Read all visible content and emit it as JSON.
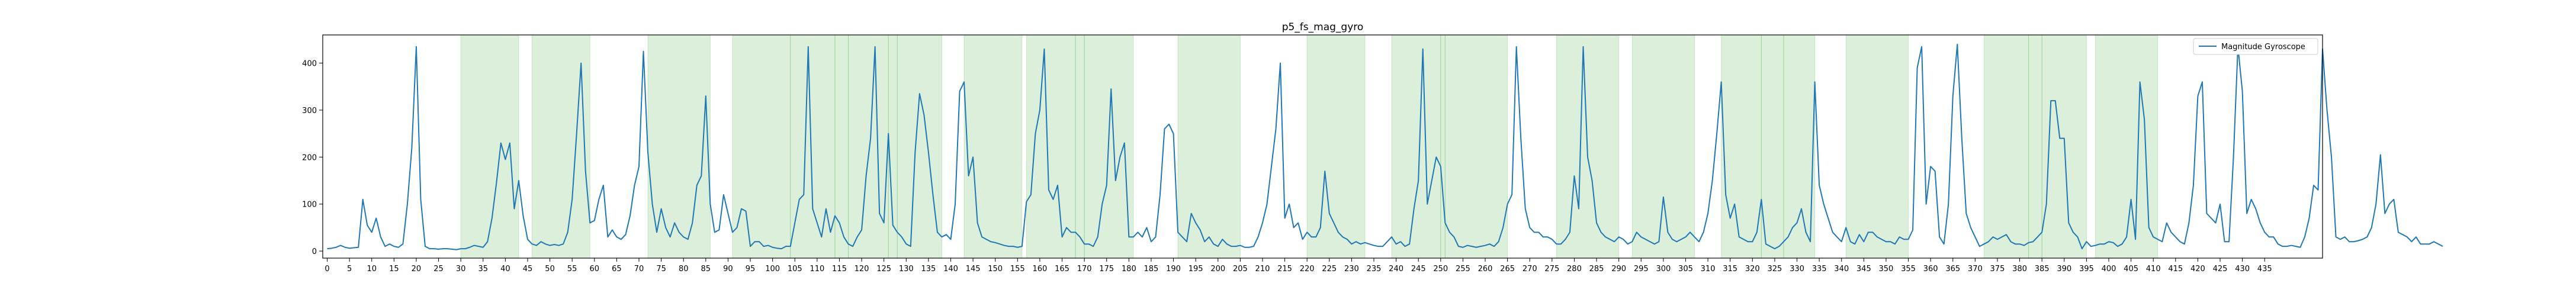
{
  "chart_data": {
    "type": "line",
    "title": "p5_fs_mag_gyro",
    "xlabel": "",
    "ylabel": "",
    "xlim": [
      -1,
      448
    ],
    "ylim": [
      -15,
      460
    ],
    "xticks": [
      0,
      5,
      10,
      15,
      20,
      25,
      30,
      35,
      40,
      45,
      50,
      55,
      60,
      65,
      70,
      75,
      80,
      85,
      90,
      95,
      100,
      105,
      110,
      115,
      120,
      125,
      130,
      135,
      140,
      145,
      150,
      155,
      160,
      165,
      170,
      175,
      180,
      185,
      190,
      195,
      200,
      205,
      210,
      215,
      220,
      225,
      230,
      235,
      240,
      245,
      250,
      255,
      260,
      265,
      270,
      275,
      280,
      285,
      290,
      295,
      300,
      305,
      310,
      315,
      320,
      325,
      330,
      335,
      340,
      345,
      350,
      355,
      360,
      365,
      370,
      375,
      380,
      385,
      390,
      395,
      400,
      405,
      410,
      415,
      420,
      425,
      430,
      435
    ],
    "yticks": [
      0,
      100,
      200,
      300,
      400
    ],
    "grid": false,
    "legend_position": "top-right",
    "series": [
      {
        "name": "Magnitude Gyroscope",
        "color": "#1f77b4",
        "x_start": 0,
        "values": [
          5,
          6,
          8,
          12,
          8,
          6,
          7,
          8,
          110,
          55,
          40,
          70,
          30,
          10,
          15,
          10,
          8,
          15,
          100,
          220,
          435,
          110,
          10,
          5,
          5,
          4,
          5,
          5,
          4,
          3,
          5,
          5,
          8,
          12,
          10,
          8,
          20,
          70,
          145,
          230,
          195,
          230,
          90,
          150,
          75,
          25,
          15,
          12,
          20,
          15,
          12,
          14,
          12,
          15,
          40,
          110,
          250,
          400,
          170,
          60,
          65,
          110,
          140,
          30,
          45,
          30,
          25,
          35,
          75,
          140,
          180,
          425,
          210,
          100,
          40,
          90,
          50,
          30,
          60,
          40,
          30,
          25,
          60,
          140,
          160,
          330,
          100,
          40,
          45,
          120,
          80,
          40,
          50,
          90,
          85,
          10,
          20,
          20,
          10,
          12,
          8,
          6,
          5,
          10,
          10,
          60,
          110,
          120,
          435,
          90,
          60,
          30,
          90,
          40,
          75,
          60,
          30,
          15,
          10,
          30,
          45,
          160,
          240,
          435,
          80,
          60,
          250,
          55,
          40,
          30,
          15,
          10,
          210,
          335,
          290,
          210,
          120,
          40,
          30,
          35,
          25,
          100,
          340,
          360,
          160,
          200,
          60,
          30,
          25,
          20,
          18,
          15,
          12,
          10,
          10,
          8,
          10,
          105,
          120,
          250,
          300,
          430,
          130,
          110,
          140,
          30,
          50,
          40,
          40,
          30,
          15,
          15,
          10,
          30,
          100,
          140,
          345,
          150,
          200,
          230,
          30,
          30,
          40,
          30,
          50,
          20,
          30,
          120,
          260,
          270,
          250,
          40,
          30,
          20,
          80,
          60,
          45,
          20,
          30,
          15,
          10,
          25,
          15,
          10,
          10,
          12,
          8,
          8,
          10,
          30,
          60,
          100,
          180,
          260,
          400,
          70,
          100,
          50,
          60,
          25,
          40,
          30,
          30,
          50,
          170,
          80,
          60,
          40,
          30,
          25,
          15,
          20,
          15,
          18,
          15,
          12,
          10,
          10,
          20,
          30,
          15,
          20,
          10,
          15,
          90,
          150,
          430,
          100,
          150,
          200,
          180,
          60,
          40,
          30,
          10,
          8,
          12,
          10,
          8,
          10,
          12,
          15,
          10,
          20,
          50,
          100,
          120,
          435,
          240,
          90,
          50,
          40,
          40,
          30,
          30,
          25,
          15,
          15,
          25,
          40,
          160,
          90,
          435,
          200,
          150,
          60,
          40,
          30,
          25,
          20,
          30,
          25,
          15,
          20,
          40,
          30,
          25,
          20,
          15,
          20,
          115,
          40,
          25,
          20,
          25,
          30,
          40,
          30,
          20,
          40,
          80,
          150,
          250,
          360,
          120,
          70,
          100,
          30,
          25,
          20,
          20,
          40,
          110,
          15,
          10,
          5,
          10,
          20,
          30,
          50,
          60,
          90,
          40,
          20,
          360,
          140,
          100,
          70,
          40,
          30,
          20,
          50,
          20,
          15,
          35,
          20,
          40,
          40,
          30,
          25,
          20,
          20,
          15,
          30,
          25,
          25,
          45,
          390,
          435,
          100,
          180,
          170,
          30,
          15,
          100,
          330,
          440,
          240,
          80,
          50,
          30,
          10,
          15,
          20,
          30,
          25,
          30,
          35,
          20,
          15,
          15,
          12,
          18,
          20,
          30,
          40,
          100,
          320,
          320,
          240,
          240,
          60,
          40,
          30,
          5,
          20,
          10,
          12,
          15,
          15,
          20,
          18,
          10,
          15,
          30,
          110,
          25,
          360,
          280,
          50,
          30,
          25,
          20,
          60,
          40,
          30,
          20,
          15,
          60,
          140,
          330,
          360,
          80,
          70,
          60,
          100,
          20,
          20,
          200,
          435,
          340,
          80,
          110,
          90,
          60,
          40,
          30,
          30,
          15,
          10,
          10,
          12,
          10,
          8,
          30,
          70,
          140,
          130,
          430,
          300,
          200,
          30,
          25,
          30,
          20,
          20,
          22,
          25,
          30,
          50,
          100,
          205,
          80,
          100,
          110,
          40,
          35,
          30,
          20,
          30,
          15,
          15,
          15,
          20,
          15,
          10
        ]
      }
    ],
    "shaded_regions": [
      [
        30,
        43
      ],
      [
        46,
        59
      ],
      [
        72,
        86
      ],
      [
        91,
        104
      ],
      [
        104,
        114
      ],
      [
        114,
        117
      ],
      [
        117,
        126
      ],
      [
        126,
        128
      ],
      [
        128,
        138
      ],
      [
        143,
        156
      ],
      [
        157,
        168
      ],
      [
        168,
        170
      ],
      [
        170,
        181
      ],
      [
        191,
        205
      ],
      [
        220,
        233
      ],
      [
        239,
        250
      ],
      [
        250,
        251
      ],
      [
        251,
        265
      ],
      [
        276,
        290
      ],
      [
        293,
        307
      ],
      [
        313,
        322
      ],
      [
        322,
        327
      ],
      [
        327,
        334
      ],
      [
        341,
        355
      ],
      [
        372,
        382
      ],
      [
        382,
        385
      ],
      [
        385,
        395
      ],
      [
        397,
        411
      ]
    ],
    "shade_color": "#2ca02c"
  }
}
